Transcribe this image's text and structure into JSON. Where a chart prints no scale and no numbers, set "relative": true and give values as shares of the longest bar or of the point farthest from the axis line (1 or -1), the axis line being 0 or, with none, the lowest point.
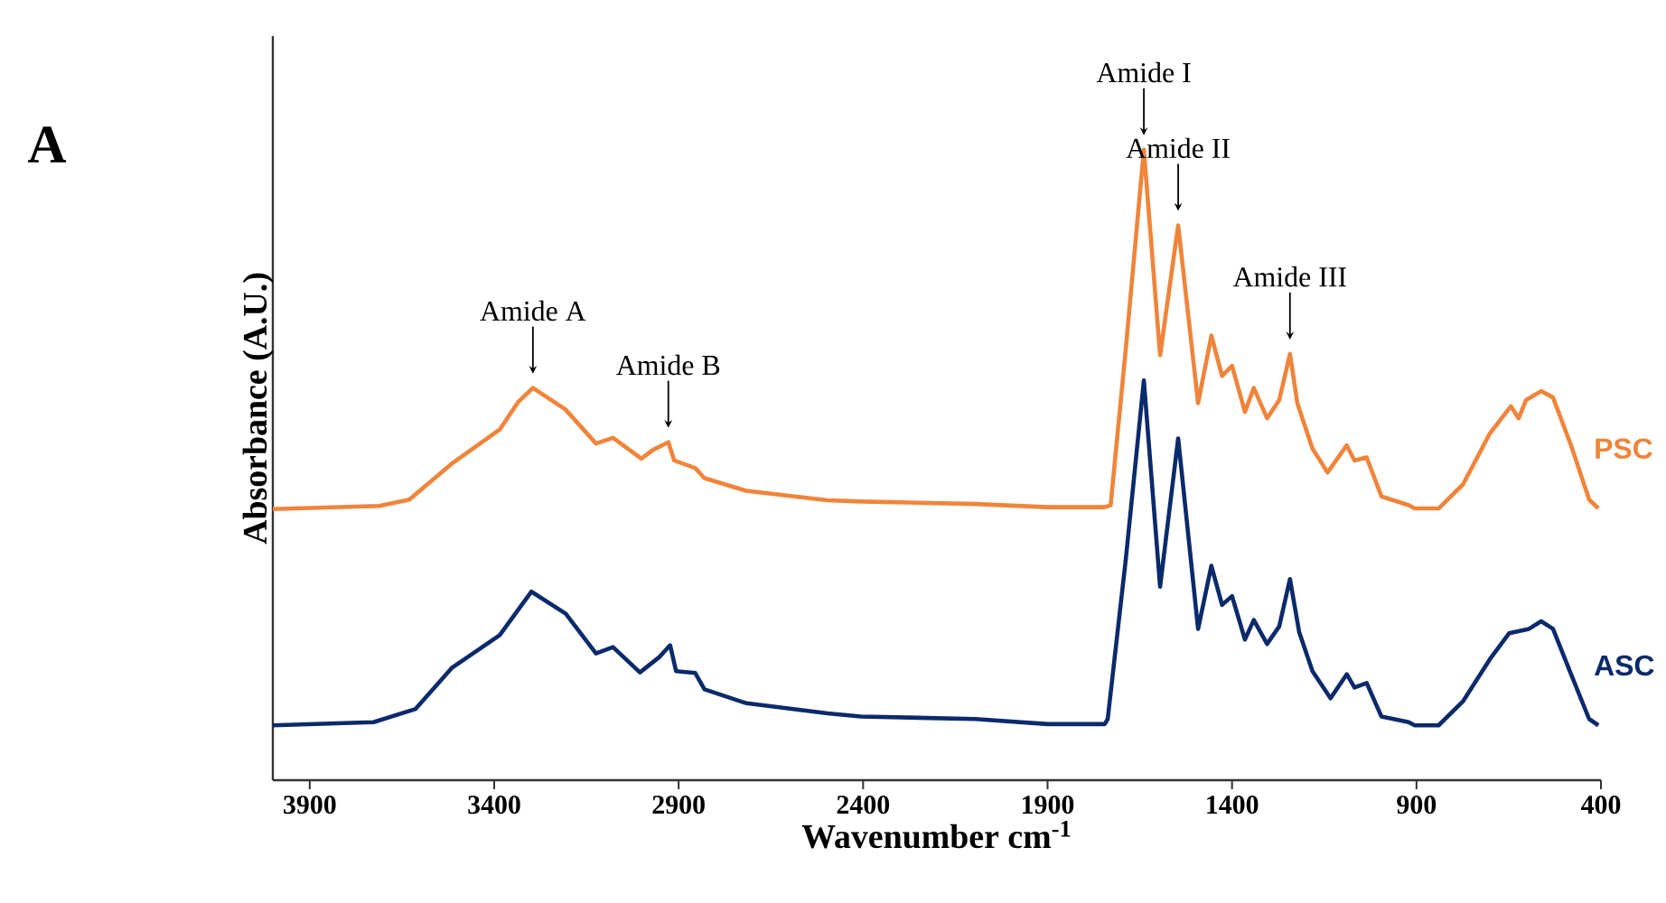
{
  "chart_data": {
    "type": "line",
    "xlabel": "Wavenumber cm$^{-1}$",
    "ylabel": "Absorbance (A.U.)",
    "relative": true,
    "legend": false,
    "grid": false,
    "xlim": [
      4000,
      400
    ],
    "xticks": [
      3900,
      3400,
      2900,
      2400,
      1900,
      1400,
      900,
      400
    ],
    "annotations": [
      "A",
      {
        "text": "Amide A",
        "x": 3295,
        "y": 0.622
      },
      {
        "text": "Amide B",
        "x": 2928,
        "y": 0.536
      },
      {
        "text": "Amide I",
        "x": 1639,
        "y": 1.0
      },
      {
        "text": "Amide II",
        "x": 1546,
        "y": 0.88
      },
      {
        "text": "Amide III",
        "x": 1243,
        "y": 0.676
      }
    ],
    "series": [
      {
        "name": "PSC",
        "color": "#f0843a",
        "x": [
          4000,
          3711,
          3630,
          3515,
          3385,
          3336,
          3295,
          3207,
          3124,
          3078,
          3001,
          2969,
          2928,
          2912,
          2855,
          2830,
          2717,
          2497,
          2406,
          2096,
          1900,
          1745,
          1729,
          1688,
          1639,
          1595,
          1546,
          1492,
          1456,
          1427,
          1400,
          1365,
          1341,
          1305,
          1272,
          1243,
          1223,
          1182,
          1141,
          1089,
          1068,
          1035,
          995,
          921,
          905,
          840,
          774,
          701,
          644,
          623,
          603,
          562,
          530,
          481,
          432,
          407
        ],
        "values": [
          0.43,
          0.435,
          0.445,
          0.502,
          0.556,
          0.599,
          0.622,
          0.588,
          0.534,
          0.543,
          0.51,
          0.524,
          0.536,
          0.507,
          0.495,
          0.479,
          0.459,
          0.444,
          0.442,
          0.438,
          0.433,
          0.433,
          0.436,
          0.684,
          1.0,
          0.674,
          0.88,
          0.598,
          0.705,
          0.641,
          0.657,
          0.584,
          0.622,
          0.574,
          0.603,
          0.676,
          0.598,
          0.526,
          0.488,
          0.531,
          0.507,
          0.512,
          0.45,
          0.436,
          0.431,
          0.431,
          0.469,
          0.55,
          0.593,
          0.574,
          0.603,
          0.617,
          0.607,
          0.531,
          0.445,
          0.431
        ]
      },
      {
        "name": "ASC",
        "color": "#0b2a6b",
        "x": [
          4000,
          3727,
          3613,
          3515,
          3385,
          3299,
          3206,
          3124,
          3078,
          3005,
          2953,
          2923,
          2907,
          2855,
          2830,
          2716,
          2496,
          2406,
          2096,
          1900,
          1745,
          1737,
          1688,
          1639,
          1595,
          1546,
          1492,
          1456,
          1427,
          1400,
          1365,
          1341,
          1305,
          1272,
          1243,
          1218,
          1182,
          1133,
          1089,
          1068,
          1035,
          995,
          921,
          905,
          840,
          774,
          701,
          649,
          595,
          562,
          530,
          481,
          432,
          407
        ],
        "values": [
          0.087,
          0.092,
          0.113,
          0.178,
          0.23,
          0.299,
          0.264,
          0.201,
          0.211,
          0.171,
          0.195,
          0.214,
          0.173,
          0.17,
          0.144,
          0.122,
          0.106,
          0.101,
          0.097,
          0.089,
          0.089,
          0.097,
          0.35,
          0.634,
          0.307,
          0.542,
          0.24,
          0.34,
          0.278,
          0.292,
          0.223,
          0.254,
          0.216,
          0.244,
          0.319,
          0.235,
          0.173,
          0.13,
          0.168,
          0.147,
          0.154,
          0.101,
          0.092,
          0.087,
          0.087,
          0.125,
          0.192,
          0.233,
          0.24,
          0.252,
          0.24,
          0.168,
          0.097,
          0.087
        ]
      }
    ]
  }
}
